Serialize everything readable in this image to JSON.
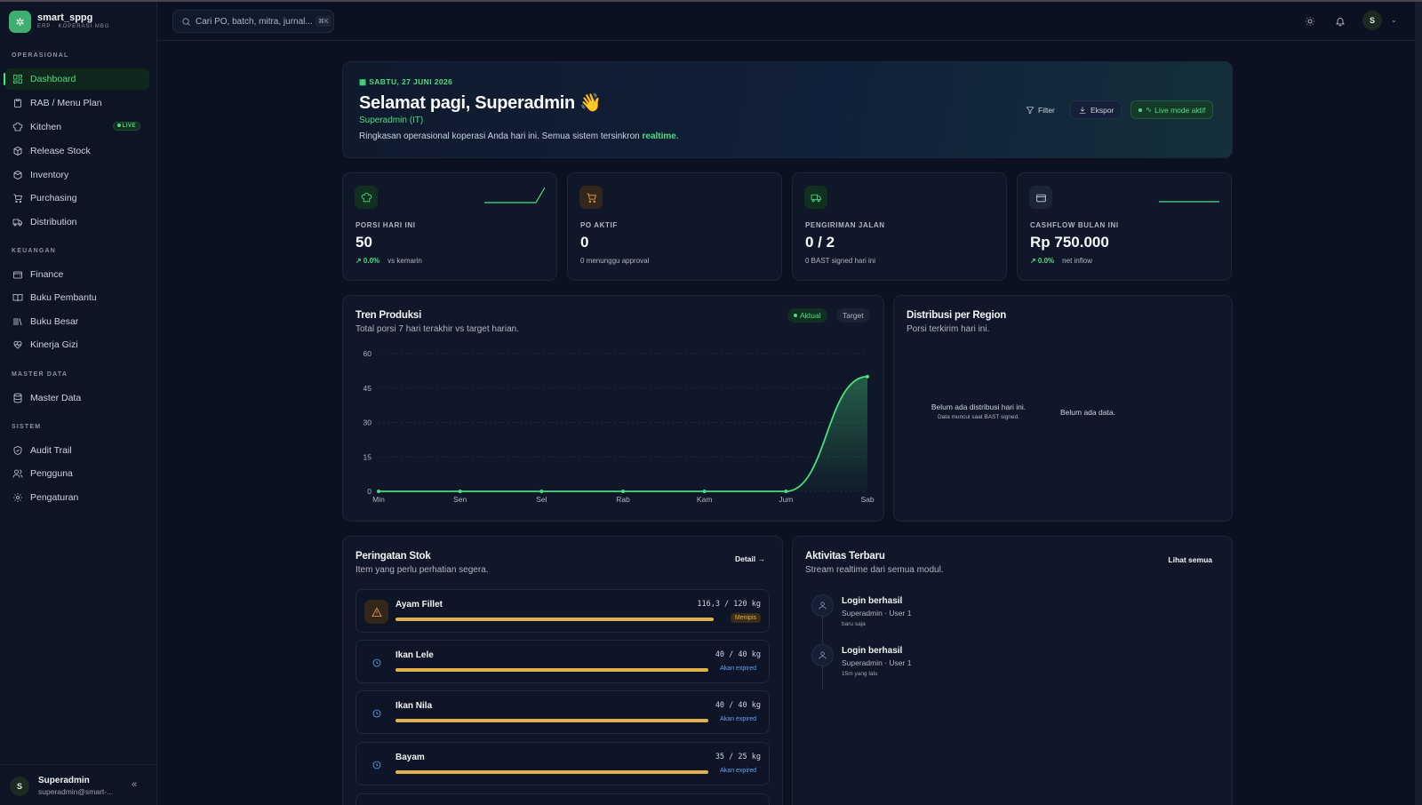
{
  "brand": {
    "name": "smart_sppg",
    "subtitle": "ERP · KOPERASI MBG"
  },
  "sidebar": {
    "sections": [
      {
        "label": "OPERASIONAL"
      },
      {
        "label": "KEUANGAN"
      },
      {
        "label": "MASTER DATA"
      },
      {
        "label": "SISTEM"
      }
    ],
    "items": [
      {
        "label": "Dashboard",
        "icon": "dashboard-icon",
        "active": true
      },
      {
        "label": "RAB / Menu Plan",
        "icon": "clipboard-icon"
      },
      {
        "label": "Kitchen",
        "icon": "chef-hat-icon",
        "badge": "LIVE"
      },
      {
        "label": "Release Stock",
        "icon": "package-out-icon"
      },
      {
        "label": "Inventory",
        "icon": "box-icon"
      },
      {
        "label": "Purchasing",
        "icon": "cart-icon"
      },
      {
        "label": "Distribution",
        "icon": "truck-icon"
      },
      {
        "label": "Finance",
        "icon": "wallet-icon"
      },
      {
        "label": "Buku Pembantu",
        "icon": "book-open-icon"
      },
      {
        "label": "Buku Besar",
        "icon": "library-icon"
      },
      {
        "label": "Kinerja Gizi",
        "icon": "heart-pulse-icon"
      },
      {
        "label": "Master Data",
        "icon": "database-icon"
      },
      {
        "label": "Audit Trail",
        "icon": "shield-check-icon"
      },
      {
        "label": "Pengguna",
        "icon": "users-icon"
      },
      {
        "label": "Pengaturan",
        "icon": "settings-icon"
      }
    ],
    "user": {
      "initial": "S",
      "name": "Superadmin",
      "email": "superadmin@smart-..."
    }
  },
  "topbar": {
    "search_placeholder": "Cari PO, batch, mitra, jurnal...",
    "search_shortcut": "⌘K",
    "user_initial": "S"
  },
  "hero": {
    "date": "SABTU, 27 JUNI 2026",
    "greeting": "Selamat pagi, Superadmin",
    "wave": "👋",
    "role": "Superadmin (IT)",
    "desc_prefix": "Ringkasan operasional koperasi Anda hari ini. Semua sistem tersinkron ",
    "desc_highlight": "realtime",
    "desc_suffix": ".",
    "filter_label": "Filter",
    "export_label": "Ekspor",
    "live_label": "Live mode aktif"
  },
  "kpis": [
    {
      "label": "PORSI HARI INI",
      "value": "50",
      "pct": "↗ 0.0%",
      "sub": "vs kemarin",
      "icon": "chef-hat-icon"
    },
    {
      "label": "PO AKTIF",
      "value": "0",
      "sub": "0 menunggu approval",
      "icon": "cart-icon"
    },
    {
      "label": "PENGIRIMAN JALAN",
      "value": "0 / 2",
      "sub": "0 BAST signed hari ini",
      "icon": "truck-icon"
    },
    {
      "label": "CASHFLOW BULAN INI",
      "value": "Rp 750.000",
      "pct": "↗ 0.0%",
      "sub": "net inflow",
      "icon": "wallet-icon"
    }
  ],
  "trend": {
    "title": "Tren Produksi",
    "subtitle": "Total porsi 7 hari terakhir vs target harian.",
    "legend_actual": "Aktual",
    "legend_target": "Target",
    "accent": "#4ade80"
  },
  "chart_data": {
    "type": "area",
    "categories": [
      "Min",
      "Sen",
      "Sel",
      "Rab",
      "Kam",
      "Jum",
      "Sab"
    ],
    "series": [
      {
        "name": "Aktual",
        "values": [
          0,
          0,
          0,
          0,
          0,
          0,
          50
        ]
      }
    ],
    "yticks": [
      0,
      15,
      30,
      45,
      60
    ],
    "ylim": [
      0,
      60
    ],
    "grid": true
  },
  "region": {
    "title": "Distribusi per Region",
    "subtitle": "Porsi terkirim hari ini.",
    "empty_main": "Belum ada distribusi hari ini.",
    "empty_sub": "Data muncul saat BAST signed.",
    "empty_alt": "Belum ada data."
  },
  "stock": {
    "title": "Peringatan Stok",
    "subtitle": "Item yang perlu perhatian segera.",
    "detail_label": "Detail →",
    "items": [
      {
        "name": "Ayam Fillet",
        "qty": "116,3 / 120 kg",
        "badge": "Menipis",
        "level": 0.97,
        "type": "warning"
      },
      {
        "name": "Ikan Lele",
        "qty": "40 / 40 kg",
        "badge": "Akan expired",
        "level": 1.0,
        "type": "expiry"
      },
      {
        "name": "Ikan Nila",
        "qty": "40 / 40 kg",
        "badge": "Akan expired",
        "level": 1.0,
        "type": "expiry"
      },
      {
        "name": "Bayam",
        "qty": "35 / 25 kg",
        "badge": "Akan expired",
        "level": 1.0,
        "type": "expiry"
      }
    ]
  },
  "activity": {
    "title": "Aktivitas Terbaru",
    "subtitle": "Stream realtime dari semua modul.",
    "see_all": "Lihat semua",
    "items": [
      {
        "title": "Login berhasil",
        "by": "Superadmin · User 1",
        "time": "baru saja"
      },
      {
        "title": "Login berhasil",
        "by": "Superadmin · User 1",
        "time": "15m yang lalu"
      }
    ]
  }
}
